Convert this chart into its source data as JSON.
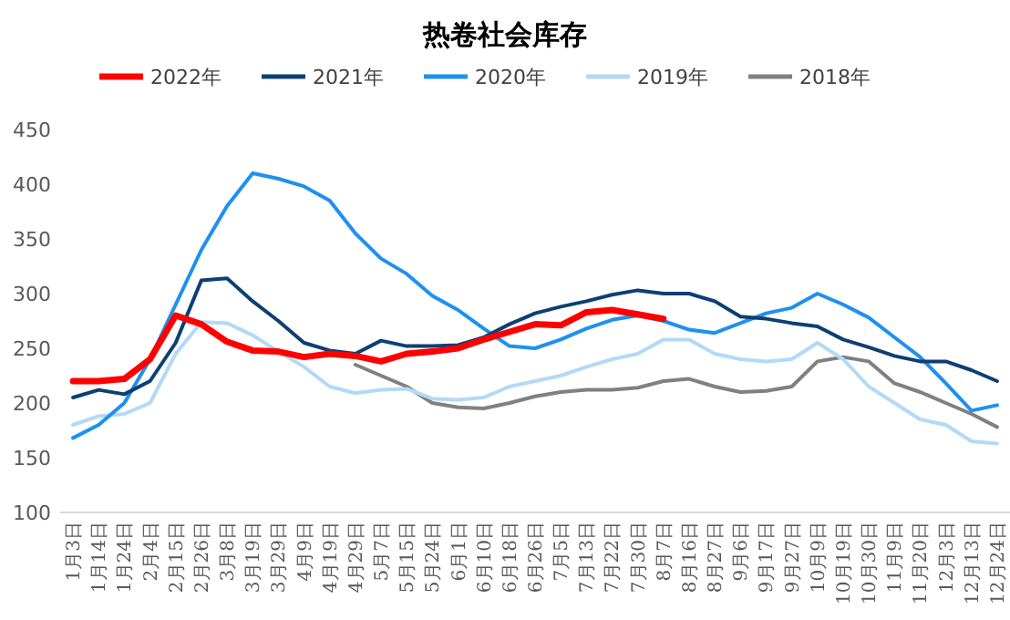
{
  "chart_data": {
    "type": "line",
    "title": "热卷社会库存",
    "legend": "top",
    "ylim": [
      100,
      450
    ],
    "yticks": [
      100,
      150,
      200,
      250,
      300,
      350,
      400,
      450
    ],
    "categories": [
      "1月3日",
      "1月14日",
      "1月24日",
      "2月4日",
      "2月15日",
      "2月26日",
      "3月8日",
      "3月19日",
      "3月29日",
      "4月9日",
      "4月19日",
      "4月29日",
      "5月7日",
      "5月15日",
      "5月24日",
      "6月1日",
      "6月10日",
      "6月18日",
      "6月26日",
      "7月5日",
      "7月13日",
      "7月22日",
      "7月30日",
      "8月7日",
      "8月16日",
      "8月27日",
      "9月6日",
      "9月17日",
      "9月27日",
      "10月9日",
      "10月19日",
      "10月30日",
      "11月9日",
      "11月20日",
      "12月3日",
      "12月13日",
      "12月24日"
    ],
    "series": [
      {
        "name": "2022年",
        "color": "#ff0000",
        "values": [
          220,
          220,
          222,
          240,
          280,
          272,
          256,
          248,
          247,
          242,
          245,
          243,
          238,
          245,
          247,
          250,
          258,
          265,
          272,
          271,
          283,
          285,
          281,
          277,
          null,
          null,
          null,
          null,
          null,
          null,
          null,
          null,
          null,
          null,
          null,
          null,
          null
        ]
      },
      {
        "name": "2021年",
        "color": "#0d3f73",
        "values": [
          205,
          212,
          208,
          220,
          255,
          312,
          314,
          293,
          275,
          255,
          248,
          245,
          257,
          252,
          252,
          253,
          260,
          272,
          282,
          288,
          293,
          299,
          303,
          300,
          300,
          293,
          279,
          277,
          273,
          270,
          258,
          251,
          243,
          238,
          238,
          230,
          220
        ]
      },
      {
        "name": "2020年",
        "color": "#1e90f0",
        "values": [
          168,
          180,
          200,
          240,
          290,
          340,
          380,
          410,
          405,
          398,
          385,
          355,
          332,
          318,
          298,
          285,
          268,
          252,
          250,
          258,
          268,
          276,
          280,
          275,
          267,
          264,
          273,
          282,
          287,
          300,
          290,
          278,
          260,
          242,
          218,
          193,
          198
        ]
      },
      {
        "name": "2019年",
        "color": "#b4d9f7",
        "values": [
          180,
          188,
          190,
          200,
          245,
          274,
          273,
          262,
          247,
          233,
          215,
          209,
          212,
          213,
          204,
          203,
          205,
          215,
          220,
          225,
          233,
          240,
          245,
          258,
          258,
          245,
          240,
          238,
          240,
          255,
          240,
          215,
          200,
          185,
          180,
          165,
          163
        ]
      },
      {
        "name": "2018年",
        "color": "#808080",
        "values": [
          null,
          null,
          null,
          null,
          null,
          null,
          null,
          null,
          null,
          null,
          null,
          235,
          225,
          215,
          200,
          196,
          195,
          200,
          206,
          210,
          212,
          212,
          214,
          220,
          222,
          215,
          210,
          211,
          215,
          238,
          242,
          238,
          218,
          210,
          200,
          190,
          178
        ]
      }
    ]
  }
}
